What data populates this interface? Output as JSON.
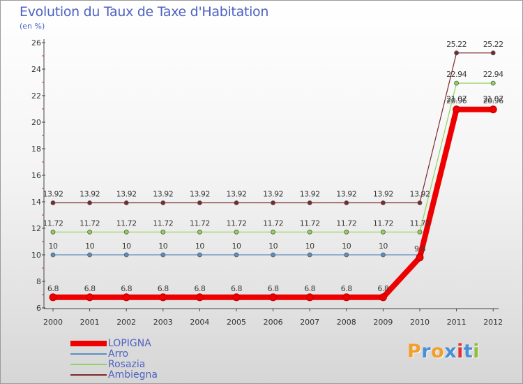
{
  "header": {
    "title": "Evolution du Taux de Taxe d'Habitation",
    "subtitle": "(en %)"
  },
  "logo": {
    "text": "Proxiti",
    "letter_colors": [
      "#f0a02a",
      "#4a8fd6",
      "#f0a02a",
      "#4a8fd6",
      "#e03030",
      "#4a8fd6",
      "#8fbe3a"
    ]
  },
  "chart_data": {
    "type": "line",
    "x": [
      "2000",
      "2001",
      "2002",
      "2003",
      "2004",
      "2005",
      "2006",
      "2007",
      "2008",
      "2009",
      "2010",
      "2011",
      "2012"
    ],
    "ylim": [
      6,
      26
    ],
    "yticks": [
      6,
      8,
      10,
      12,
      14,
      16,
      18,
      20,
      22,
      24,
      26
    ],
    "grid": false,
    "legend_position": "bottom-left",
    "series": [
      {
        "name": "LOPIGNA",
        "color": "#ee0000",
        "values": [
          6.8,
          6.8,
          6.8,
          6.8,
          6.8,
          6.8,
          6.8,
          6.8,
          6.8,
          6.8,
          9.8,
          20.96,
          20.96
        ],
        "labels": [
          "6.8",
          "6.8",
          "6.8",
          "6.8",
          "6.8",
          "6.8",
          "6.8",
          "6.8",
          "6.8",
          "6.8",
          "9.8",
          "20.96",
          "20.96"
        ]
      },
      {
        "name": "Arro",
        "color": "#5d8fc0",
        "values": [
          10,
          10,
          10,
          10,
          10,
          10,
          10,
          10,
          10,
          10,
          10,
          21.07,
          21.07
        ],
        "labels": [
          "10",
          "10",
          "10",
          "10",
          "10",
          "10",
          "10",
          "10",
          "10",
          "10",
          "",
          "21.07",
          "21.07"
        ]
      },
      {
        "name": "Rosazia",
        "color": "#8ed45a",
        "values": [
          11.72,
          11.72,
          11.72,
          11.72,
          11.72,
          11.72,
          11.72,
          11.72,
          11.72,
          11.72,
          11.72,
          22.94,
          22.94
        ],
        "labels": [
          "11.72",
          "11.72",
          "11.72",
          "11.72",
          "11.72",
          "11.72",
          "11.72",
          "11.72",
          "11.72",
          "11.72",
          "11.72",
          "22.94",
          "22.94"
        ]
      },
      {
        "name": "Ambiegna",
        "color": "#7a2a2a",
        "values": [
          13.92,
          13.92,
          13.92,
          13.92,
          13.92,
          13.92,
          13.92,
          13.92,
          13.92,
          13.92,
          13.92,
          25.22,
          25.22
        ],
        "labels": [
          "13.92",
          "13.92",
          "13.92",
          "13.92",
          "13.92",
          "13.92",
          "13.92",
          "13.92",
          "13.92",
          "13.92",
          "13.92",
          "25.22",
          "25.22"
        ]
      }
    ]
  }
}
